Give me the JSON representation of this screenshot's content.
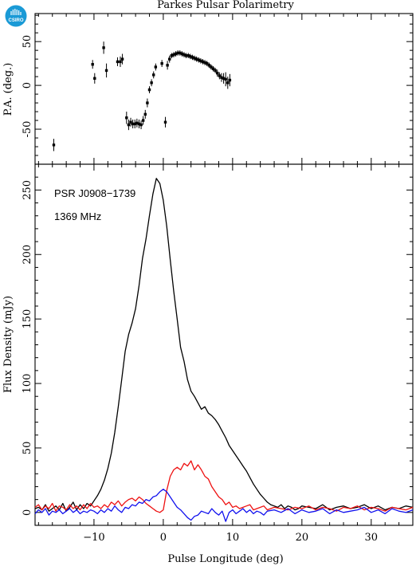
{
  "title": "Parkes Pulsar Polarimetry",
  "logo": {
    "text": "CSIRO",
    "color": "#1a9ad6"
  },
  "annotations": [
    "PSR J0908−1739",
    "1369 MHz"
  ],
  "chart_data": [
    {
      "type": "scatter",
      "panel": "top",
      "ylabel": "P.A. (deg.)",
      "xlim": [
        -18.5,
        36
      ],
      "ylim": [
        -90,
        82
      ],
      "yticks": [
        -50,
        0,
        50
      ],
      "xticks_minor_step": 2,
      "grid": false,
      "series": [
        {
          "color": "#000000",
          "x": [
            -15.8,
            -10.2,
            -9.9,
            -8.6,
            -8.2,
            -6.6,
            -6.2,
            -5.9,
            -5.3,
            -5.0,
            -4.7,
            -4.4,
            -4.1,
            -3.8,
            -3.5,
            -3.2,
            -2.9,
            -2.6,
            -2.3,
            -2.0,
            -1.7,
            -1.4,
            -1.1,
            -0.2,
            0.3,
            0.6,
            0.9,
            1.2,
            1.5,
            1.8,
            2.1,
            2.4,
            2.7,
            3.0,
            3.3,
            3.6,
            3.9,
            4.2,
            4.5,
            4.8,
            5.1,
            5.4,
            5.7,
            6.0,
            6.3,
            6.6,
            6.9,
            7.2,
            7.5,
            7.8,
            8.1,
            8.4,
            8.7,
            9.0,
            9.3,
            9.6
          ],
          "y": [
            -68,
            24,
            8,
            43,
            17,
            27,
            27,
            30,
            -37,
            -45,
            -42,
            -44,
            -44,
            -43,
            -44,
            -45,
            -40,
            -33,
            -20,
            -5,
            3,
            12,
            21,
            25,
            -42,
            23,
            30,
            34,
            35,
            36,
            37,
            37,
            36,
            35,
            34,
            34,
            33,
            32,
            31,
            30,
            29,
            28,
            27,
            26,
            25,
            23,
            21,
            19,
            17,
            14,
            11,
            9,
            8,
            7,
            3,
            6
          ],
          "err": [
            7,
            5,
            6,
            7,
            8,
            5,
            6,
            6,
            7,
            6,
            5,
            5,
            5,
            5,
            5,
            5,
            5,
            5,
            5,
            4,
            4,
            4,
            4,
            4,
            6,
            5,
            4,
            3,
            3,
            3,
            3,
            3,
            3,
            3,
            3,
            3,
            3,
            3,
            3,
            3,
            3,
            3,
            3,
            3,
            3,
            3,
            3,
            3,
            3,
            4,
            4,
            5,
            6,
            8,
            7,
            7
          ]
        }
      ]
    },
    {
      "type": "line",
      "panel": "bottom",
      "xlabel": "Pulse Longitude (deg)",
      "ylabel": "Flux Density (mJy)",
      "xlim": [
        -18.5,
        36
      ],
      "ylim": [
        -10,
        270
      ],
      "xticks": [
        -10,
        0,
        10,
        20,
        30
      ],
      "yticks": [
        0,
        50,
        100,
        150,
        200,
        250
      ],
      "grid": false,
      "series": [
        {
          "color": "#000000",
          "x": [
            -18.5,
            -18.0,
            -17.5,
            -17.0,
            -16.5,
            -16.0,
            -15.5,
            -15.0,
            -14.5,
            -14.0,
            -13.5,
            -13.0,
            -12.5,
            -12.0,
            -11.5,
            -11.0,
            -10.5,
            -10.0,
            -9.5,
            -9.0,
            -8.5,
            -8.0,
            -7.5,
            -7.0,
            -6.5,
            -6.0,
            -5.5,
            -5.0,
            -4.5,
            -4.0,
            -3.5,
            -3.0,
            -2.5,
            -2.0,
            -1.5,
            -1.0,
            -0.5,
            0.0,
            0.5,
            1.0,
            1.5,
            2.0,
            2.5,
            3.0,
            3.5,
            4.0,
            4.5,
            5.0,
            5.5,
            6.0,
            6.5,
            7.0,
            7.5,
            8.0,
            8.5,
            9.0,
            9.5,
            10.0,
            10.5,
            11.0,
            11.5,
            12.0,
            12.5,
            13.0,
            13.5,
            14.0,
            14.5,
            15.0,
            15.5,
            16.0,
            16.5,
            17.0,
            17.5,
            18.0,
            18.5,
            19.0,
            19.5,
            20.0,
            21.0,
            22.0,
            23.0,
            24.0,
            25.0,
            26.0,
            27.0,
            28.0,
            29.0,
            30.0,
            31.0,
            32.0,
            33.0,
            34.0,
            35.0,
            36.0
          ],
          "y": [
            3,
            4,
            2,
            6,
            1,
            3,
            5,
            2,
            7,
            1,
            4,
            8,
            2,
            6,
            3,
            7,
            5,
            9,
            13,
            18,
            25,
            34,
            46,
            62,
            82,
            103,
            125,
            138,
            147,
            158,
            176,
            197,
            212,
            230,
            247,
            259,
            255,
            242,
            222,
            196,
            172,
            150,
            128,
            117,
            103,
            94,
            90,
            85,
            80,
            82,
            77,
            75,
            72,
            68,
            63,
            58,
            52,
            48,
            44,
            40,
            36,
            32,
            27,
            22,
            18,
            14,
            11,
            8,
            6,
            5,
            4,
            6,
            3,
            5,
            4,
            2,
            3,
            5,
            4,
            3,
            6,
            2,
            4,
            5,
            3,
            4,
            6,
            3,
            5,
            2,
            4,
            3,
            5,
            4
          ]
        },
        {
          "color": "#ee1111",
          "x": [
            -18.5,
            -18.0,
            -17.5,
            -17.0,
            -16.5,
            -16.0,
            -15.5,
            -15.0,
            -14.5,
            -14.0,
            -13.5,
            -13.0,
            -12.5,
            -12.0,
            -11.5,
            -11.0,
            -10.5,
            -10.0,
            -9.5,
            -9.0,
            -8.5,
            -8.0,
            -7.5,
            -7.0,
            -6.5,
            -6.0,
            -5.5,
            -5.0,
            -4.5,
            -4.0,
            -3.5,
            -3.0,
            -2.5,
            -2.0,
            -1.5,
            -1.0,
            -0.5,
            0.0,
            0.5,
            1.0,
            1.5,
            2.0,
            2.5,
            3.0,
            3.5,
            4.0,
            4.5,
            5.0,
            5.5,
            6.0,
            6.5,
            7.0,
            7.5,
            8.0,
            8.5,
            9.0,
            9.5,
            10.0,
            10.5,
            11.0,
            11.5,
            12.0,
            12.5,
            13.0,
            13.5,
            14.0,
            14.5,
            15.0,
            15.5,
            16.0,
            17.0,
            18.0,
            19.0,
            20.0,
            21.0,
            22.0,
            23.0,
            24.0,
            25.0,
            26.0,
            27.0,
            28.0,
            29.0,
            30.0,
            31.0,
            32.0,
            33.0,
            34.0,
            35.0,
            36.0
          ],
          "y": [
            4,
            6,
            2,
            5,
            3,
            7,
            1,
            5,
            4,
            2,
            6,
            3,
            5,
            2,
            6,
            3,
            7,
            4,
            5,
            3,
            6,
            4,
            8,
            6,
            9,
            5,
            8,
            10,
            11,
            9,
            12,
            10,
            7,
            5,
            3,
            1,
            0,
            2,
            17,
            28,
            33,
            35,
            33,
            38,
            36,
            40,
            33,
            37,
            33,
            28,
            26,
            20,
            16,
            12,
            10,
            6,
            8,
            4,
            5,
            3,
            4,
            5,
            6,
            2,
            3,
            4,
            5,
            2,
            3,
            4,
            3,
            2,
            4,
            3,
            5,
            2,
            4,
            3,
            1,
            4,
            3,
            5,
            2,
            4,
            3,
            1,
            4,
            3,
            2,
            4
          ]
        },
        {
          "color": "#1111ee",
          "x": [
            -18.5,
            -18.0,
            -17.5,
            -17.0,
            -16.5,
            -16.0,
            -15.5,
            -15.0,
            -14.5,
            -14.0,
            -13.5,
            -13.0,
            -12.5,
            -12.0,
            -11.5,
            -11.0,
            -10.5,
            -10.0,
            -9.5,
            -9.0,
            -8.5,
            -8.0,
            -7.5,
            -7.0,
            -6.5,
            -6.0,
            -5.5,
            -5.0,
            -4.5,
            -4.0,
            -3.5,
            -3.0,
            -2.5,
            -2.0,
            -1.5,
            -1.0,
            -0.5,
            0.0,
            0.5,
            1.0,
            1.5,
            2.0,
            2.5,
            3.0,
            3.5,
            4.0,
            4.5,
            5.0,
            5.5,
            6.0,
            6.5,
            7.0,
            7.5,
            8.0,
            8.5,
            9.0,
            9.5,
            10.0,
            10.5,
            11.0,
            11.5,
            12.0,
            12.5,
            13.0,
            13.5,
            14.0,
            14.5,
            15.0,
            16.0,
            17.0,
            18.0,
            19.0,
            20.0,
            21.0,
            22.0,
            23.0,
            24.0,
            25.0,
            26.0,
            27.0,
            28.0,
            29.0,
            30.0,
            31.0,
            32.0,
            33.0,
            34.0,
            35.0,
            36.0
          ],
          "y": [
            -1,
            2,
            0,
            3,
            -2,
            1,
            0,
            2,
            -1,
            1,
            3,
            0,
            2,
            -1,
            1,
            0,
            2,
            1,
            -1,
            2,
            0,
            3,
            1,
            5,
            2,
            0,
            4,
            3,
            6,
            5,
            8,
            7,
            10,
            9,
            12,
            13,
            16,
            18,
            16,
            12,
            8,
            4,
            2,
            -1,
            -4,
            -6,
            -3,
            -2,
            1,
            0,
            -1,
            3,
            0,
            -2,
            1,
            -7,
            0,
            2,
            -1,
            1,
            3,
            0,
            2,
            -1,
            1,
            0,
            -2,
            1,
            2,
            0,
            3,
            -1,
            2,
            0,
            1,
            3,
            -1,
            2,
            0,
            1,
            2,
            4,
            0,
            2,
            -1,
            3,
            1,
            0,
            2
          ]
        }
      ]
    }
  ]
}
